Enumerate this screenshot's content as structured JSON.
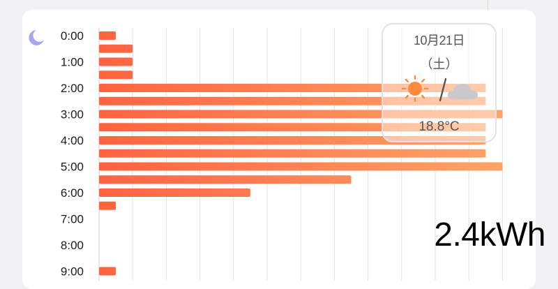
{
  "chart_data": {
    "type": "bar",
    "orientation": "horizontal",
    "y_tick_labels": [
      "0:00",
      "1:00",
      "2:00",
      "3:00",
      "4:00",
      "5:00",
      "6:00",
      "7:00",
      "8:00",
      "9:00"
    ],
    "slots_per_hour": 2,
    "values": [
      0.5,
      1.0,
      1.0,
      1.0,
      11.5,
      11.5,
      12.0,
      11.5,
      11.5,
      11.5,
      12.0,
      7.5,
      4.5,
      0.5,
      0,
      0,
      0,
      0,
      0.5
    ],
    "xlim": [
      0,
      12.5
    ],
    "grid": true,
    "bar_colors": [
      "#ff6340",
      "#ffa468"
    ]
  },
  "weather": {
    "date": "10月21日",
    "weekday": "（土）",
    "temperature": "18.8°C",
    "icons": [
      "sun-icon",
      "cloud-icon"
    ],
    "sun_color": "#ff8a3d",
    "cloud_color": "#c9c9cc"
  },
  "total": "2.4kWh",
  "colors": {
    "moon": "#a8a4ee",
    "grid": "#e1e1e4"
  }
}
